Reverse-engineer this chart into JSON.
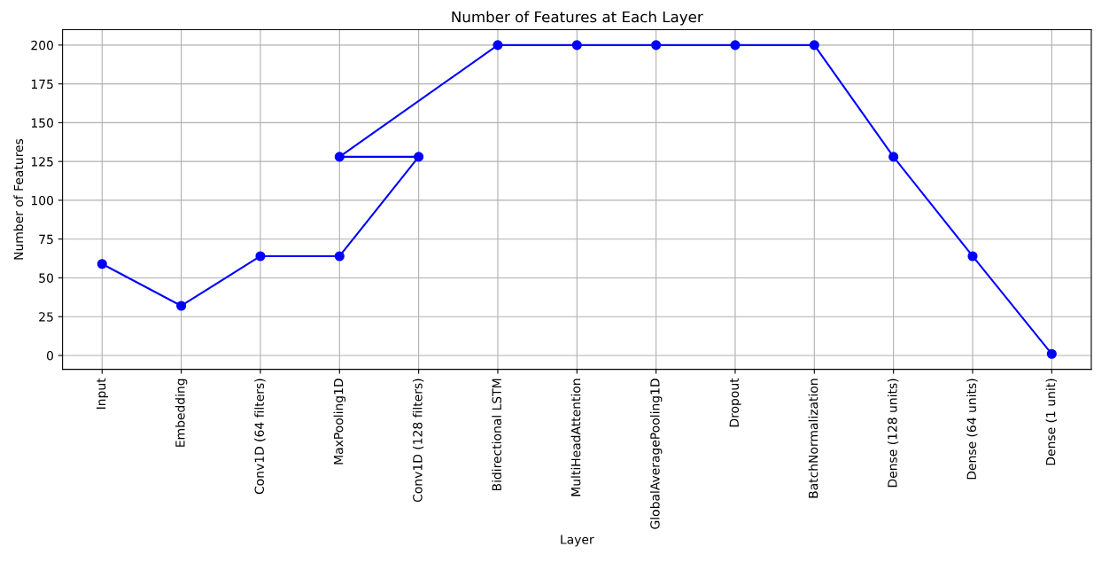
{
  "chart_data": {
    "type": "line",
    "title": "Number of Features at Each Layer",
    "xlabel": "Layer",
    "ylabel": "Number of Features",
    "categories": [
      "Input",
      "Embedding",
      "Conv1D (64 filters)",
      "MaxPooling1D",
      "Conv1D (128 filters)",
      "Bidirectional LSTM",
      "MultiHeadAttention",
      "GlobalAveragePooling1D",
      "Dropout",
      "BatchNormalization",
      "Dense (128 units)",
      "Dense (64 units)",
      "Dense (1 unit)"
    ],
    "series": [
      {
        "color": "#0000ff",
        "x": [
          "Input",
          "Embedding",
          "Conv1D (64 filters)",
          "MaxPooling1D",
          "Conv1D (128 filters)",
          "MaxPooling1D",
          "Bidirectional LSTM",
          "MultiHeadAttention",
          "GlobalAveragePooling1D",
          "Dropout",
          "BatchNormalization",
          "Dense (128 units)",
          "Dense (64 units)",
          "Dense (1 unit)"
        ],
        "values": [
          59,
          32,
          64,
          64,
          128,
          128,
          200,
          200,
          200,
          200,
          200,
          128,
          64,
          1
        ]
      }
    ],
    "ylim": [
      -8.95,
      209.95
    ],
    "yticks": [
      0,
      25,
      50,
      75,
      100,
      125,
      150,
      175,
      200
    ],
    "grid": true,
    "marker": "circle",
    "line_style": "solid"
  }
}
